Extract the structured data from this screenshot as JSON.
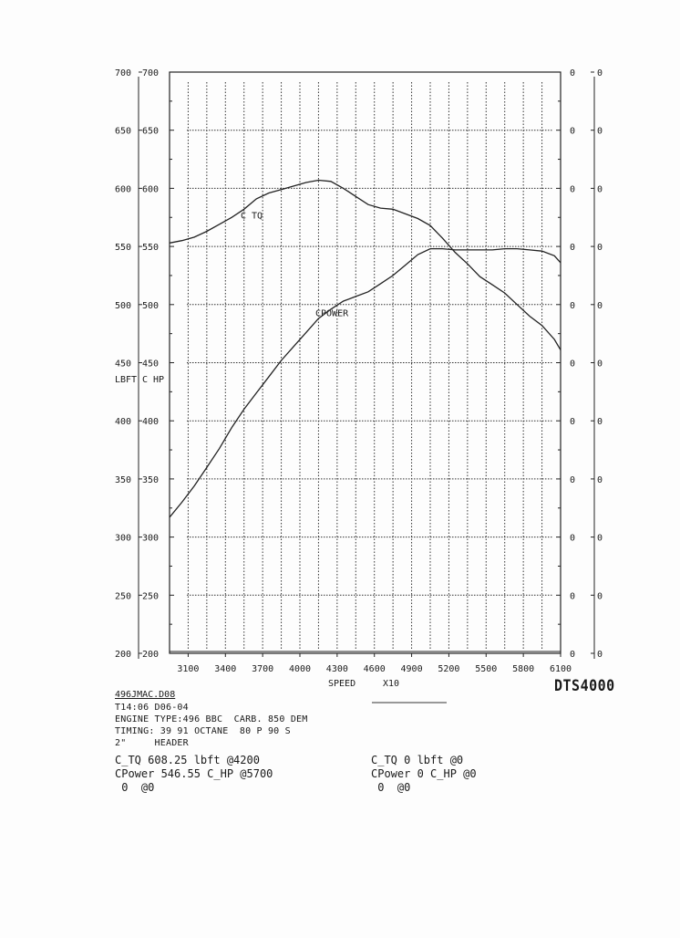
{
  "chart_data": {
    "type": "line",
    "title": "",
    "xlabel": "SPEED",
    "xlabel_suffix": "X10",
    "x_ticks": [
      3100,
      3400,
      3700,
      4000,
      4300,
      4600,
      4900,
      5200,
      5500,
      5800,
      6100
    ],
    "x_range": [
      2950,
      6100
    ],
    "y_ticks": [
      "700",
      "650",
      "600",
      "550",
      "500",
      "450",
      "400",
      "350",
      "300",
      "250",
      "200"
    ],
    "y_range": [
      200,
      700
    ],
    "left_axis_labels": [
      "LBFT",
      "C HP"
    ],
    "right_axis_ticks": [
      "0",
      "0",
      "0",
      "0",
      "0",
      "0",
      "0",
      "0",
      "0",
      "0",
      "0"
    ],
    "grid": true,
    "series": [
      {
        "name": "C TQ",
        "x": [
          2950,
          3050,
          3150,
          3250,
          3350,
          3450,
          3550,
          3650,
          3750,
          3850,
          3950,
          4050,
          4150,
          4250,
          4350,
          4450,
          4550,
          4650,
          4750,
          4850,
          4950,
          5050,
          5150,
          5250,
          5350,
          5450,
          5550,
          5650,
          5750,
          5850,
          5950,
          6050,
          6100
        ],
        "values": [
          553,
          555,
          558,
          563,
          569,
          575,
          582,
          591,
          596,
          599,
          602,
          605,
          607,
          606,
          600,
          593,
          586,
          583,
          582,
          578,
          574,
          568,
          557,
          545,
          535,
          524,
          517,
          510,
          500,
          490,
          482,
          470,
          461
        ]
      },
      {
        "name": "CPOWER",
        "x": [
          2950,
          3050,
          3150,
          3250,
          3350,
          3450,
          3550,
          3650,
          3750,
          3850,
          3950,
          4050,
          4150,
          4250,
          4350,
          4450,
          4550,
          4650,
          4750,
          4850,
          4950,
          5050,
          5150,
          5250,
          5350,
          5450,
          5550,
          5650,
          5750,
          5850,
          5950,
          6050,
          6100
        ],
        "values": [
          317,
          330,
          344,
          360,
          376,
          394,
          410,
          424,
          438,
          452,
          464,
          476,
          488,
          496,
          503,
          507,
          511,
          518,
          525,
          534,
          543,
          548,
          548,
          547,
          547,
          547,
          547,
          548,
          548,
          547,
          546,
          542,
          536
        ]
      }
    ]
  },
  "file": {
    "name": "496JMAC.D08",
    "time_line": "T14:06 D06-04",
    "engine_line": "ENGINE TYPE:496 BBC  CARB. 850 DEM",
    "timing_line": "TIMING: 39 91 OCTANE  80 P 90 S",
    "header_line": "2\"     HEADER"
  },
  "summary": {
    "left": [
      "C_TQ 608.25 lbft @4200",
      "CPower 546.55 C_HP @5700",
      " 0  @0"
    ],
    "right": [
      "C_TQ 0 lbft @0",
      "CPower 0 C_HP @0",
      " 0  @0"
    ]
  },
  "brand": "DTS4000"
}
